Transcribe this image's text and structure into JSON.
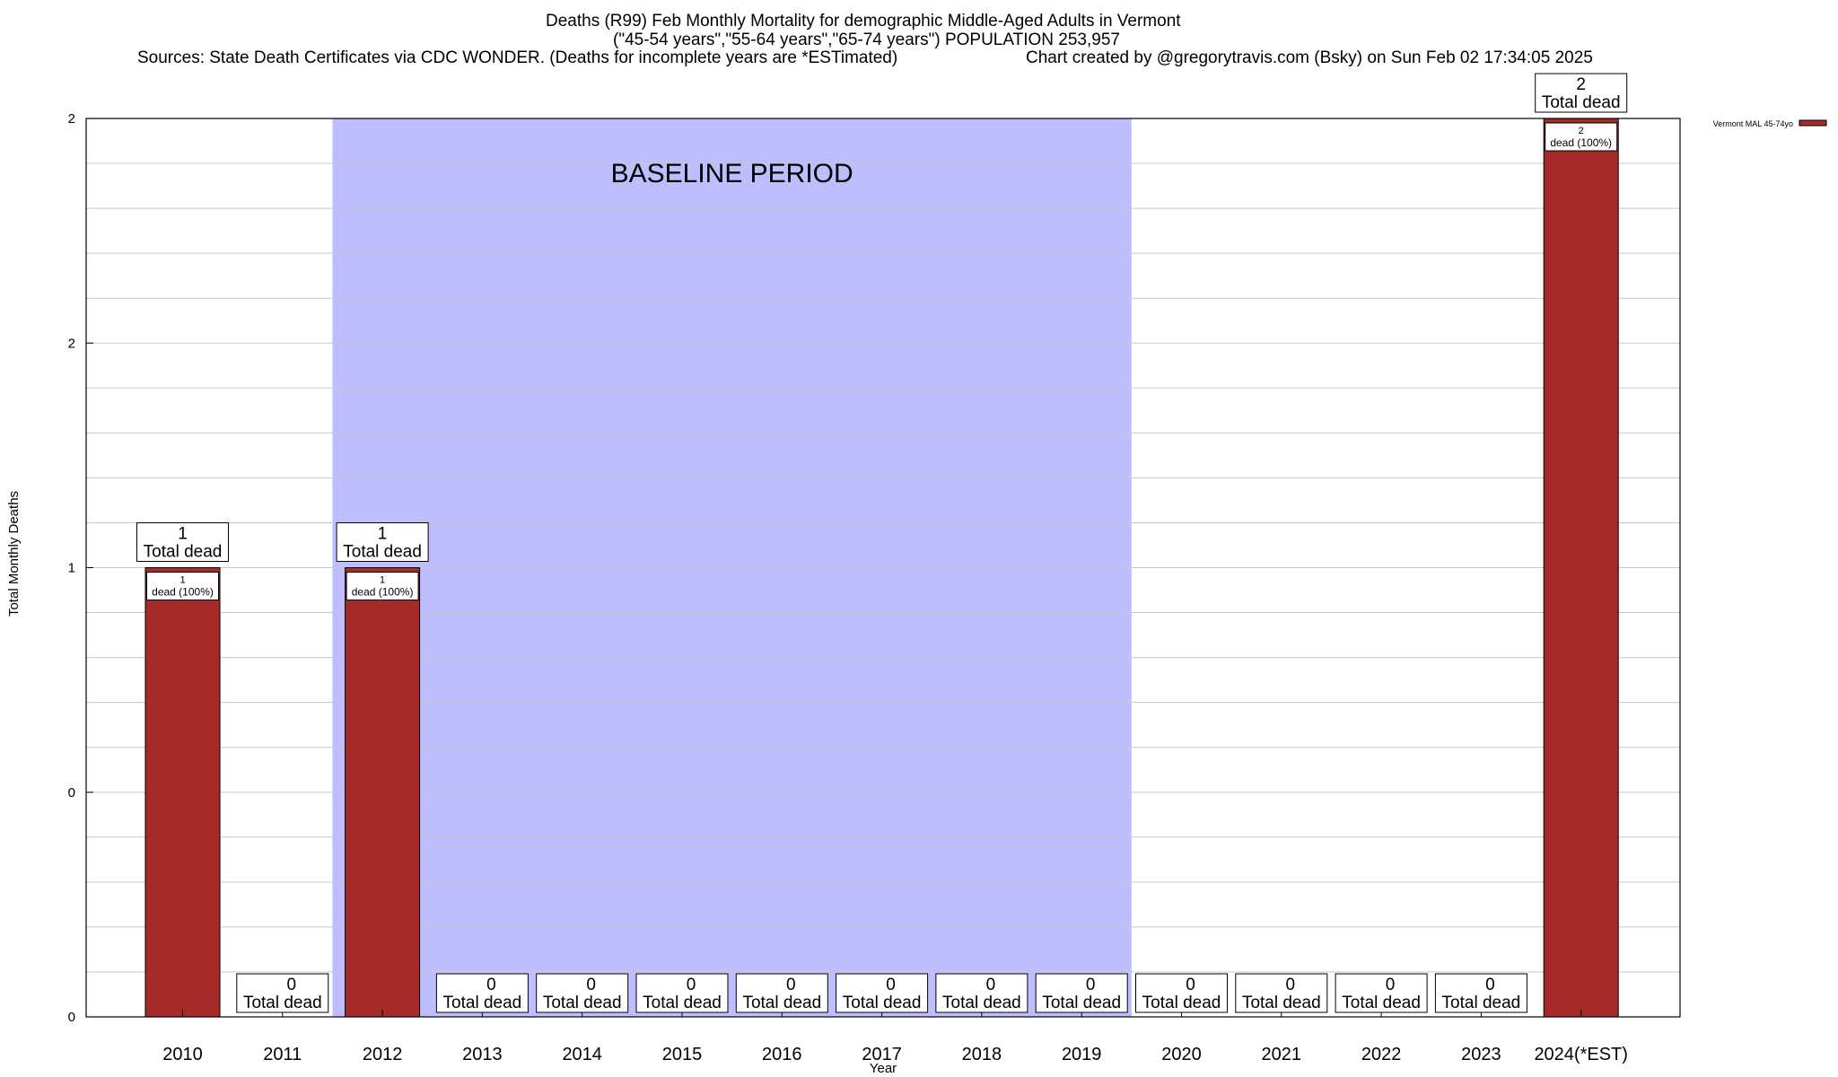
{
  "titles": {
    "line1": "Deaths (R99) Feb Monthly Mortality for demographic Middle-Aged Adults in Vermont",
    "line2": "(\"45-54 years\",\"55-64 years\",\"65-74 years\") POPULATION 253,957",
    "line3_left": "Sources: State Death Certificates via CDC WONDER. (Deaths for incomplete years are *ESTimated)",
    "line3_right": "Chart created by @gregorytravis.com (Bsky) on Sun Feb 02 17:34:05 2025"
  },
  "chart_data": {
    "type": "bar",
    "xlabel": "Year",
    "ylabel": "Total Monthly Deaths",
    "ylim": [
      0,
      2
    ],
    "yticks": [
      {
        "value": 0,
        "label": "0"
      },
      {
        "value": 0.5,
        "label": "0"
      },
      {
        "value": 1,
        "label": "1"
      },
      {
        "value": 1.5,
        "label": "2"
      },
      {
        "value": 2,
        "label": "2"
      }
    ],
    "grid": true,
    "legend_position": "top-right",
    "baseline_label": "BASELINE PERIOD",
    "baseline_range": [
      "2012",
      "2019"
    ],
    "categories": [
      "2010",
      "2011",
      "2012",
      "2013",
      "2014",
      "2015",
      "2016",
      "2017",
      "2018",
      "2019",
      "2020",
      "2021",
      "2022",
      "2023",
      "2024(*EST)"
    ],
    "series": [
      {
        "name": "Vermont MAL 45-74yo",
        "color": "#a52a2a",
        "values": [
          1,
          0,
          1,
          0,
          0,
          0,
          0,
          0,
          0,
          0,
          0,
          0,
          0,
          0,
          2
        ]
      }
    ],
    "total_labels": [
      "1",
      "0",
      "1",
      "0",
      "0",
      "0",
      "0",
      "0",
      "0",
      "0",
      "0",
      "0",
      "0",
      "0",
      "2"
    ],
    "total_suffix": "Total dead",
    "inner_labels": [
      "1",
      "",
      "1",
      "",
      "",
      "",
      "",
      "",
      "",
      "",
      "",
      "",
      "",
      "",
      "2"
    ],
    "inner_suffix": "dead (100%)"
  }
}
